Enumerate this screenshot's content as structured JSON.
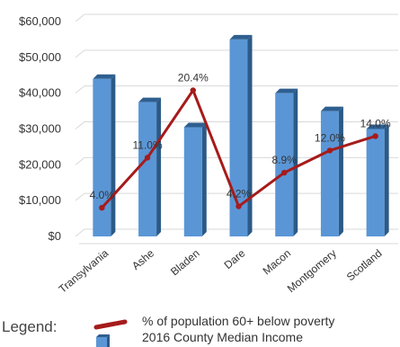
{
  "chart_data": {
    "type": "bar",
    "categories": [
      "Transylvania",
      "Ashe",
      "Bladen",
      "Dare",
      "Macon",
      "Montgomery",
      "Scotland"
    ],
    "yticks": [
      "$60,000",
      "$50,000",
      "$40,000",
      "$30,000",
      "$20,000",
      "$10,000",
      "$0"
    ],
    "ylim": [
      0,
      60000
    ],
    "bar_color": "#5a96d6",
    "line_color": "#a61b1b",
    "series": [
      {
        "name": "2016 County Median Income",
        "kind": "bar",
        "values": [
          44000,
          37500,
          30500,
          55000,
          40000,
          35000,
          30000
        ]
      },
      {
        "name": "% of population 60+ below poverty",
        "kind": "line",
        "values": [
          4.0,
          11.0,
          20.4,
          4.2,
          8.9,
          12.0,
          14.0
        ],
        "labels": [
          "4.0%",
          "11.0%",
          "20.4%",
          "4.2%",
          "8.9%",
          "12.0%",
          "14.0%"
        ]
      }
    ],
    "legend_title": "Legend:",
    "legend_items": [
      "% of population 60+ below poverty",
      "2016 County Median Income"
    ]
  }
}
